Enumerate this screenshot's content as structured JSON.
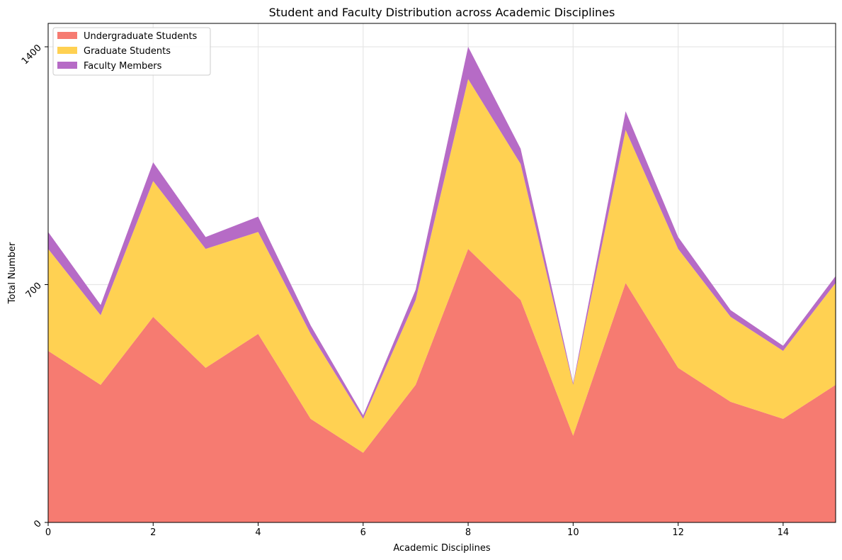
{
  "chart_data": {
    "type": "area",
    "stacked": true,
    "title": "Student and Faculty Distribution across Academic Disciplines",
    "xlabel": "Academic Disciplines",
    "ylabel": "Total Number",
    "x": [
      0,
      1,
      2,
      3,
      4,
      5,
      6,
      7,
      8,
      9,
      10,
      11,
      12,
      13,
      14,
      15
    ],
    "xlim": [
      0,
      15
    ],
    "ylim": [
      0,
      1400
    ],
    "xticks": [
      "0",
      "2",
      "4",
      "6",
      "8",
      "10",
      "12",
      "14"
    ],
    "yticks": [
      "0",
      "700",
      "1400"
    ],
    "grid": true,
    "legend_position": "top-left",
    "series": [
      {
        "name": "Undergraduate Students",
        "color": "#f67b71",
        "values": [
          505,
          405,
          605,
          455,
          555,
          305,
          205,
          405,
          805,
          655,
          255,
          705,
          455,
          355,
          305,
          405
        ]
      },
      {
        "name": "Graduate Students",
        "color": "#ffd152",
        "values": [
          300,
          205,
          400,
          350,
          300,
          250,
          100,
          250,
          500,
          400,
          150,
          450,
          350,
          250,
          200,
          300
        ]
      },
      {
        "name": "Faculty Members",
        "color": "#b66bc6",
        "values": [
          50,
          30,
          55,
          35,
          45,
          25,
          10,
          30,
          95,
          45,
          5,
          55,
          35,
          20,
          15,
          20
        ]
      }
    ]
  }
}
